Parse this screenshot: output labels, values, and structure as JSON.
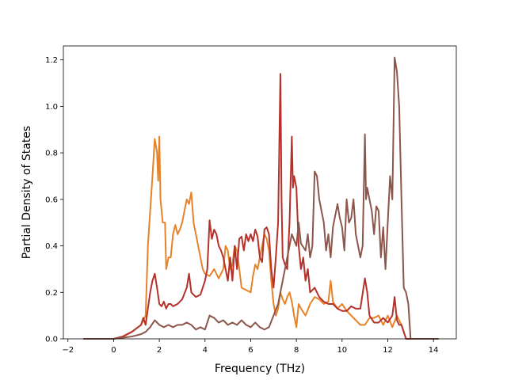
{
  "chart_data": {
    "type": "line",
    "title": "",
    "xlabel": "Frequency (THz)",
    "ylabel": "Partial Density of States",
    "xlim": [
      -2.2,
      15.0
    ],
    "ylim": [
      0.0,
      1.26
    ],
    "x_ticks": [
      -2,
      0,
      2,
      4,
      6,
      8,
      10,
      12,
      14
    ],
    "x_tick_labels": [
      "−2",
      "0",
      "2",
      "4",
      "6",
      "8",
      "10",
      "12",
      "14"
    ],
    "y_ticks": [
      0.0,
      0.2,
      0.4,
      0.6,
      0.8,
      1.0,
      1.2
    ],
    "y_tick_labels": [
      "0.0",
      "0.2",
      "0.4",
      "0.6",
      "0.8",
      "1.0",
      "1.2"
    ],
    "grid": false,
    "legend": "none",
    "series": [
      {
        "color": "#e6832a",
        "points": [
          [
            -1.3,
            0
          ],
          [
            0.0,
            0
          ],
          [
            0.4,
            0.01
          ],
          [
            0.8,
            0.03
          ],
          [
            1.2,
            0.06
          ],
          [
            1.4,
            0.1
          ],
          [
            1.5,
            0.4
          ],
          [
            1.6,
            0.55
          ],
          [
            1.7,
            0.7
          ],
          [
            1.8,
            0.86
          ],
          [
            1.9,
            0.8
          ],
          [
            1.95,
            0.68
          ],
          [
            2.0,
            0.87
          ],
          [
            2.05,
            0.6
          ],
          [
            2.15,
            0.5
          ],
          [
            2.25,
            0.5
          ],
          [
            2.3,
            0.3
          ],
          [
            2.4,
            0.35
          ],
          [
            2.5,
            0.35
          ],
          [
            2.6,
            0.45
          ],
          [
            2.7,
            0.49
          ],
          [
            2.8,
            0.45
          ],
          [
            2.9,
            0.47
          ],
          [
            3.0,
            0.5
          ],
          [
            3.1,
            0.55
          ],
          [
            3.2,
            0.6
          ],
          [
            3.3,
            0.58
          ],
          [
            3.4,
            0.63
          ],
          [
            3.5,
            0.5
          ],
          [
            3.6,
            0.45
          ],
          [
            3.7,
            0.4
          ],
          [
            3.8,
            0.35
          ],
          [
            3.9,
            0.3
          ],
          [
            4.0,
            0.28
          ],
          [
            4.2,
            0.27
          ],
          [
            4.4,
            0.3
          ],
          [
            4.6,
            0.26
          ],
          [
            4.8,
            0.3
          ],
          [
            4.9,
            0.4
          ],
          [
            5.0,
            0.38
          ],
          [
            5.1,
            0.3
          ],
          [
            5.2,
            0.32
          ],
          [
            5.3,
            0.4
          ],
          [
            5.4,
            0.38
          ],
          [
            5.5,
            0.3
          ],
          [
            5.6,
            0.22
          ],
          [
            5.8,
            0.21
          ],
          [
            6.0,
            0.2
          ],
          [
            6.1,
            0.27
          ],
          [
            6.2,
            0.32
          ],
          [
            6.3,
            0.3
          ],
          [
            6.4,
            0.35
          ],
          [
            6.5,
            0.4
          ],
          [
            6.6,
            0.45
          ],
          [
            6.7,
            0.43
          ],
          [
            6.8,
            0.38
          ],
          [
            6.9,
            0.25
          ],
          [
            7.0,
            0.15
          ],
          [
            7.1,
            0.1
          ],
          [
            7.2,
            0.13
          ],
          [
            7.3,
            0.2
          ],
          [
            7.4,
            0.17
          ],
          [
            7.5,
            0.15
          ],
          [
            7.6,
            0.18
          ],
          [
            7.7,
            0.2
          ],
          [
            7.8,
            0.16
          ],
          [
            7.9,
            0.1
          ],
          [
            8.0,
            0.05
          ],
          [
            8.1,
            0.15
          ],
          [
            8.2,
            0.13
          ],
          [
            8.4,
            0.1
          ],
          [
            8.6,
            0.15
          ],
          [
            8.8,
            0.18
          ],
          [
            9.0,
            0.17
          ],
          [
            9.2,
            0.15
          ],
          [
            9.4,
            0.16
          ],
          [
            9.5,
            0.25
          ],
          [
            9.6,
            0.16
          ],
          [
            9.8,
            0.13
          ],
          [
            10.0,
            0.15
          ],
          [
            10.2,
            0.12
          ],
          [
            10.4,
            0.1
          ],
          [
            10.6,
            0.08
          ],
          [
            10.8,
            0.06
          ],
          [
            11.0,
            0.06
          ],
          [
            11.2,
            0.09
          ],
          [
            11.4,
            0.09
          ],
          [
            11.6,
            0.1
          ],
          [
            11.8,
            0.06
          ],
          [
            12.0,
            0.1
          ],
          [
            12.2,
            0.05
          ],
          [
            12.4,
            0.1
          ],
          [
            12.6,
            0.06
          ],
          [
            12.8,
            0.0
          ],
          [
            13.2,
            0.0
          ],
          [
            14.2,
            0.0
          ]
        ]
      },
      {
        "color": "#b5312a",
        "points": [
          [
            -1.3,
            0
          ],
          [
            0.0,
            0
          ],
          [
            0.4,
            0.01
          ],
          [
            0.8,
            0.03
          ],
          [
            1.2,
            0.06
          ],
          [
            1.3,
            0.09
          ],
          [
            1.4,
            0.06
          ],
          [
            1.5,
            0.13
          ],
          [
            1.6,
            0.2
          ],
          [
            1.7,
            0.25
          ],
          [
            1.8,
            0.28
          ],
          [
            1.9,
            0.22
          ],
          [
            2.0,
            0.15
          ],
          [
            2.1,
            0.14
          ],
          [
            2.2,
            0.16
          ],
          [
            2.3,
            0.13
          ],
          [
            2.4,
            0.15
          ],
          [
            2.5,
            0.15
          ],
          [
            2.6,
            0.14
          ],
          [
            2.8,
            0.15
          ],
          [
            3.0,
            0.17
          ],
          [
            3.2,
            0.22
          ],
          [
            3.3,
            0.28
          ],
          [
            3.4,
            0.2
          ],
          [
            3.6,
            0.18
          ],
          [
            3.8,
            0.19
          ],
          [
            4.0,
            0.25
          ],
          [
            4.1,
            0.3
          ],
          [
            4.2,
            0.51
          ],
          [
            4.3,
            0.43
          ],
          [
            4.4,
            0.47
          ],
          [
            4.5,
            0.45
          ],
          [
            4.6,
            0.4
          ],
          [
            4.7,
            0.38
          ],
          [
            4.8,
            0.35
          ],
          [
            4.9,
            0.3
          ],
          [
            5.0,
            0.25
          ],
          [
            5.1,
            0.35
          ],
          [
            5.2,
            0.25
          ],
          [
            5.3,
            0.4
          ],
          [
            5.4,
            0.3
          ],
          [
            5.5,
            0.43
          ],
          [
            5.6,
            0.44
          ],
          [
            5.7,
            0.38
          ],
          [
            5.8,
            0.45
          ],
          [
            5.9,
            0.42
          ],
          [
            6.0,
            0.45
          ],
          [
            6.1,
            0.42
          ],
          [
            6.2,
            0.47
          ],
          [
            6.3,
            0.44
          ],
          [
            6.4,
            0.35
          ],
          [
            6.5,
            0.33
          ],
          [
            6.6,
            0.47
          ],
          [
            6.7,
            0.48
          ],
          [
            6.8,
            0.45
          ],
          [
            6.9,
            0.3
          ],
          [
            7.0,
            0.22
          ],
          [
            7.1,
            0.35
          ],
          [
            7.2,
            0.5
          ],
          [
            7.3,
            1.14
          ],
          [
            7.35,
            0.6
          ],
          [
            7.4,
            0.35
          ],
          [
            7.5,
            0.32
          ],
          [
            7.6,
            0.3
          ],
          [
            7.7,
            0.5
          ],
          [
            7.8,
            0.87
          ],
          [
            7.85,
            0.65
          ],
          [
            7.9,
            0.7
          ],
          [
            8.0,
            0.65
          ],
          [
            8.1,
            0.4
          ],
          [
            8.2,
            0.3
          ],
          [
            8.3,
            0.35
          ],
          [
            8.4,
            0.25
          ],
          [
            8.5,
            0.3
          ],
          [
            8.6,
            0.2
          ],
          [
            8.8,
            0.22
          ],
          [
            9.0,
            0.18
          ],
          [
            9.2,
            0.16
          ],
          [
            9.4,
            0.15
          ],
          [
            9.6,
            0.15
          ],
          [
            9.8,
            0.13
          ],
          [
            10.0,
            0.12
          ],
          [
            10.2,
            0.12
          ],
          [
            10.4,
            0.14
          ],
          [
            10.6,
            0.13
          ],
          [
            10.8,
            0.13
          ],
          [
            11.0,
            0.26
          ],
          [
            11.1,
            0.2
          ],
          [
            11.2,
            0.1
          ],
          [
            11.4,
            0.07
          ],
          [
            11.6,
            0.07
          ],
          [
            11.8,
            0.09
          ],
          [
            12.0,
            0.07
          ],
          [
            12.2,
            0.1
          ],
          [
            12.3,
            0.18
          ],
          [
            12.4,
            0.08
          ],
          [
            12.5,
            0.06
          ],
          [
            12.6,
            0.06
          ],
          [
            12.8,
            0.0
          ],
          [
            13.2,
            0.0
          ],
          [
            14.2,
            0.0
          ]
        ]
      },
      {
        "color": "#8c564b",
        "points": [
          [
            -1.3,
            0
          ],
          [
            0.0,
            0
          ],
          [
            0.4,
            0.005
          ],
          [
            0.8,
            0.01
          ],
          [
            1.2,
            0.02
          ],
          [
            1.4,
            0.03
          ],
          [
            1.6,
            0.05
          ],
          [
            1.8,
            0.08
          ],
          [
            2.0,
            0.06
          ],
          [
            2.2,
            0.05
          ],
          [
            2.4,
            0.06
          ],
          [
            2.6,
            0.05
          ],
          [
            2.8,
            0.06
          ],
          [
            3.0,
            0.06
          ],
          [
            3.2,
            0.07
          ],
          [
            3.4,
            0.06
          ],
          [
            3.6,
            0.04
          ],
          [
            3.8,
            0.05
          ],
          [
            4.0,
            0.04
          ],
          [
            4.2,
            0.1
          ],
          [
            4.4,
            0.09
          ],
          [
            4.6,
            0.07
          ],
          [
            4.8,
            0.08
          ],
          [
            5.0,
            0.06
          ],
          [
            5.2,
            0.07
          ],
          [
            5.4,
            0.06
          ],
          [
            5.6,
            0.08
          ],
          [
            5.8,
            0.06
          ],
          [
            6.0,
            0.05
          ],
          [
            6.2,
            0.07
          ],
          [
            6.4,
            0.05
          ],
          [
            6.6,
            0.04
          ],
          [
            6.8,
            0.05
          ],
          [
            7.0,
            0.1
          ],
          [
            7.2,
            0.15
          ],
          [
            7.4,
            0.25
          ],
          [
            7.6,
            0.35
          ],
          [
            7.8,
            0.45
          ],
          [
            8.0,
            0.4
          ],
          [
            8.1,
            0.5
          ],
          [
            8.2,
            0.41
          ],
          [
            8.4,
            0.38
          ],
          [
            8.5,
            0.45
          ],
          [
            8.6,
            0.35
          ],
          [
            8.7,
            0.4
          ],
          [
            8.8,
            0.72
          ],
          [
            8.9,
            0.7
          ],
          [
            9.0,
            0.6
          ],
          [
            9.2,
            0.5
          ],
          [
            9.3,
            0.38
          ],
          [
            9.4,
            0.45
          ],
          [
            9.5,
            0.35
          ],
          [
            9.6,
            0.48
          ],
          [
            9.8,
            0.58
          ],
          [
            9.9,
            0.52
          ],
          [
            10.0,
            0.48
          ],
          [
            10.1,
            0.38
          ],
          [
            10.2,
            0.6
          ],
          [
            10.3,
            0.5
          ],
          [
            10.4,
            0.52
          ],
          [
            10.5,
            0.6
          ],
          [
            10.6,
            0.45
          ],
          [
            10.8,
            0.35
          ],
          [
            10.9,
            0.4
          ],
          [
            11.0,
            0.88
          ],
          [
            11.05,
            0.6
          ],
          [
            11.1,
            0.65
          ],
          [
            11.2,
            0.6
          ],
          [
            11.3,
            0.55
          ],
          [
            11.4,
            0.45
          ],
          [
            11.5,
            0.57
          ],
          [
            11.6,
            0.55
          ],
          [
            11.7,
            0.35
          ],
          [
            11.8,
            0.48
          ],
          [
            11.9,
            0.3
          ],
          [
            12.0,
            0.5
          ],
          [
            12.1,
            0.7
          ],
          [
            12.2,
            0.6
          ],
          [
            12.3,
            1.21
          ],
          [
            12.4,
            1.15
          ],
          [
            12.5,
            1.0
          ],
          [
            12.6,
            0.6
          ],
          [
            12.7,
            0.22
          ],
          [
            12.8,
            0.2
          ],
          [
            12.9,
            0.15
          ],
          [
            13.0,
            0.0
          ],
          [
            14.2,
            0.0
          ]
        ]
      }
    ]
  }
}
